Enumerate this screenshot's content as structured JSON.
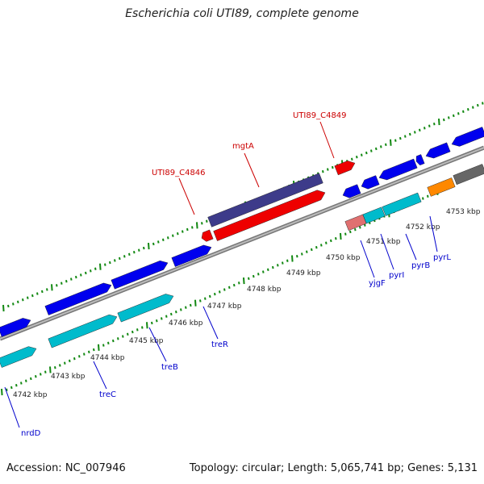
{
  "title": "Escherichia coli UTI89, complete genome",
  "accession": "Accession: NC_007946",
  "summary": "Topology: circular; Length: 5,065,741 bp; Genes: 5,131",
  "colors": {
    "forward_gene": "#0000ee",
    "reverse_gene": "#00bbcc",
    "highlight_red": "#ee0000",
    "highlight_purple": "#3d3b8a",
    "pink_gene": "#e07070",
    "orange_gene": "#ff8800",
    "grey_gene": "#666666",
    "tick": "#118811",
    "backbone": "#888888"
  },
  "kbp_labels": [
    "4742 kbp",
    "4743 kbp",
    "4744 kbp",
    "4745 kbp",
    "4746 kbp",
    "4747 kbp",
    "4748 kbp",
    "4749 kbp",
    "4750 kbp",
    "4751 kbp",
    "4752 kbp",
    "4753 kbp"
  ],
  "gene_labels_blue": [
    "nrdD",
    "treC",
    "treB",
    "treR",
    "yjgF",
    "pyrI",
    "pyrB",
    "pyrL"
  ],
  "gene_labels_red": [
    "UTI89_C4846",
    "mgtA",
    "UTI89_C4849"
  ]
}
